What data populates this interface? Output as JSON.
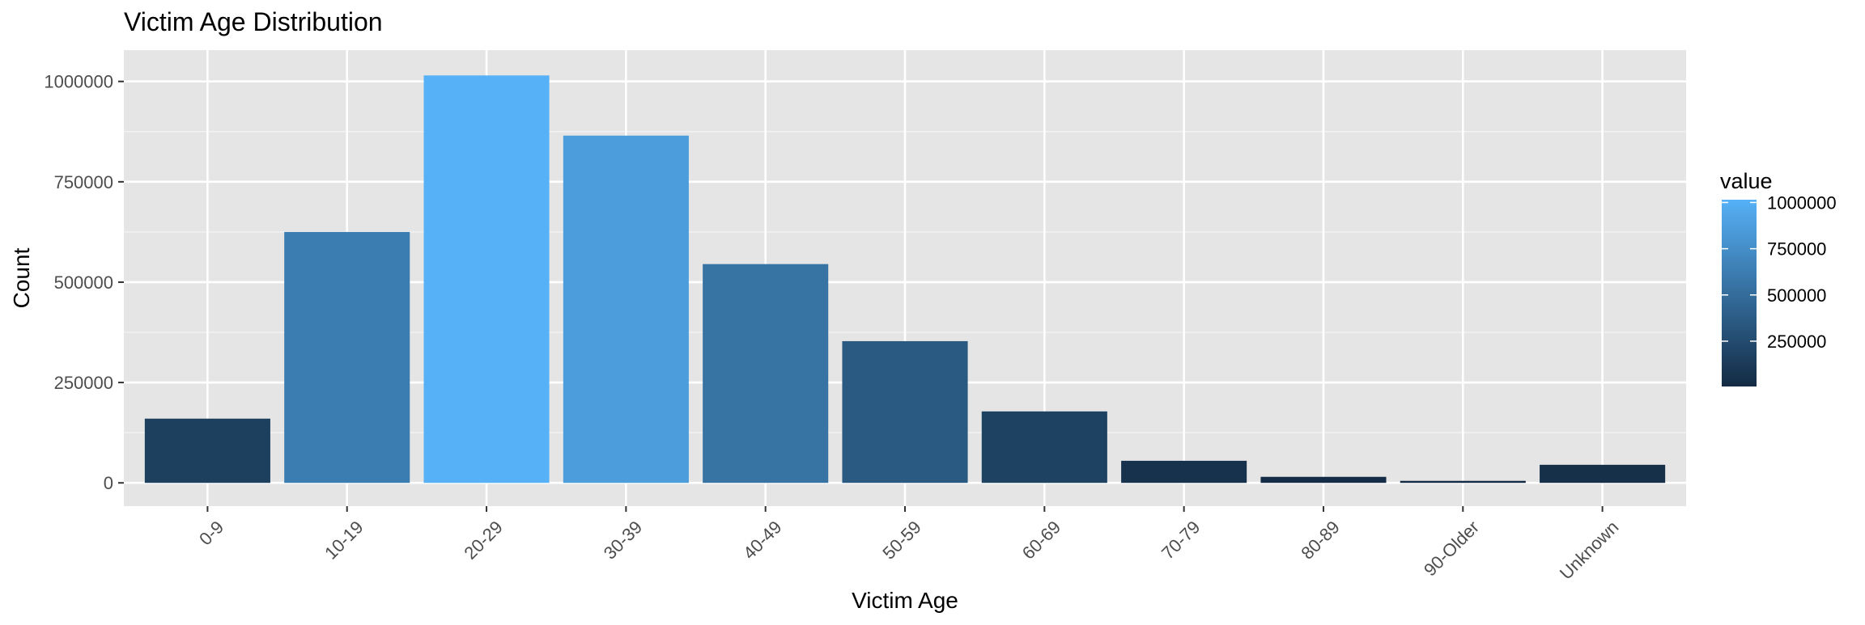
{
  "chart_data": {
    "type": "bar",
    "title": "Victim Age Distribution",
    "xlabel": "Victim Age",
    "ylabel": "Count",
    "categories": [
      "0-9",
      "10-19",
      "20-29",
      "30-39",
      "40-49",
      "50-59",
      "60-69",
      "70-79",
      "80-89",
      "90-Older",
      "Unknown"
    ],
    "values": [
      160000,
      625000,
      1015000,
      865000,
      545000,
      353000,
      178000,
      55000,
      15000,
      5000,
      45000
    ],
    "ylim": [
      -58000,
      1078000
    ],
    "yticks": [
      0,
      250000,
      500000,
      750000,
      1000000
    ],
    "ytick_labels": [
      "0",
      "250000",
      "500000",
      "750000",
      "1000000"
    ],
    "grid": true,
    "legend": {
      "title": "value",
      "placement": "right",
      "type": "colorbar",
      "ticks": [
        250000,
        500000,
        750000,
        1000000
      ],
      "tick_labels": [
        "250000",
        "500000",
        "750000",
        "1000000"
      ],
      "range": [
        5000,
        1015000
      ],
      "color_low": "#132B43",
      "color_high": "#56B1F7"
    },
    "colors": {
      "panel_background": "#E5E5E5",
      "grid_major": "#FFFFFF",
      "axis_text": "#4D4D4D",
      "title_text": "#000000"
    }
  }
}
